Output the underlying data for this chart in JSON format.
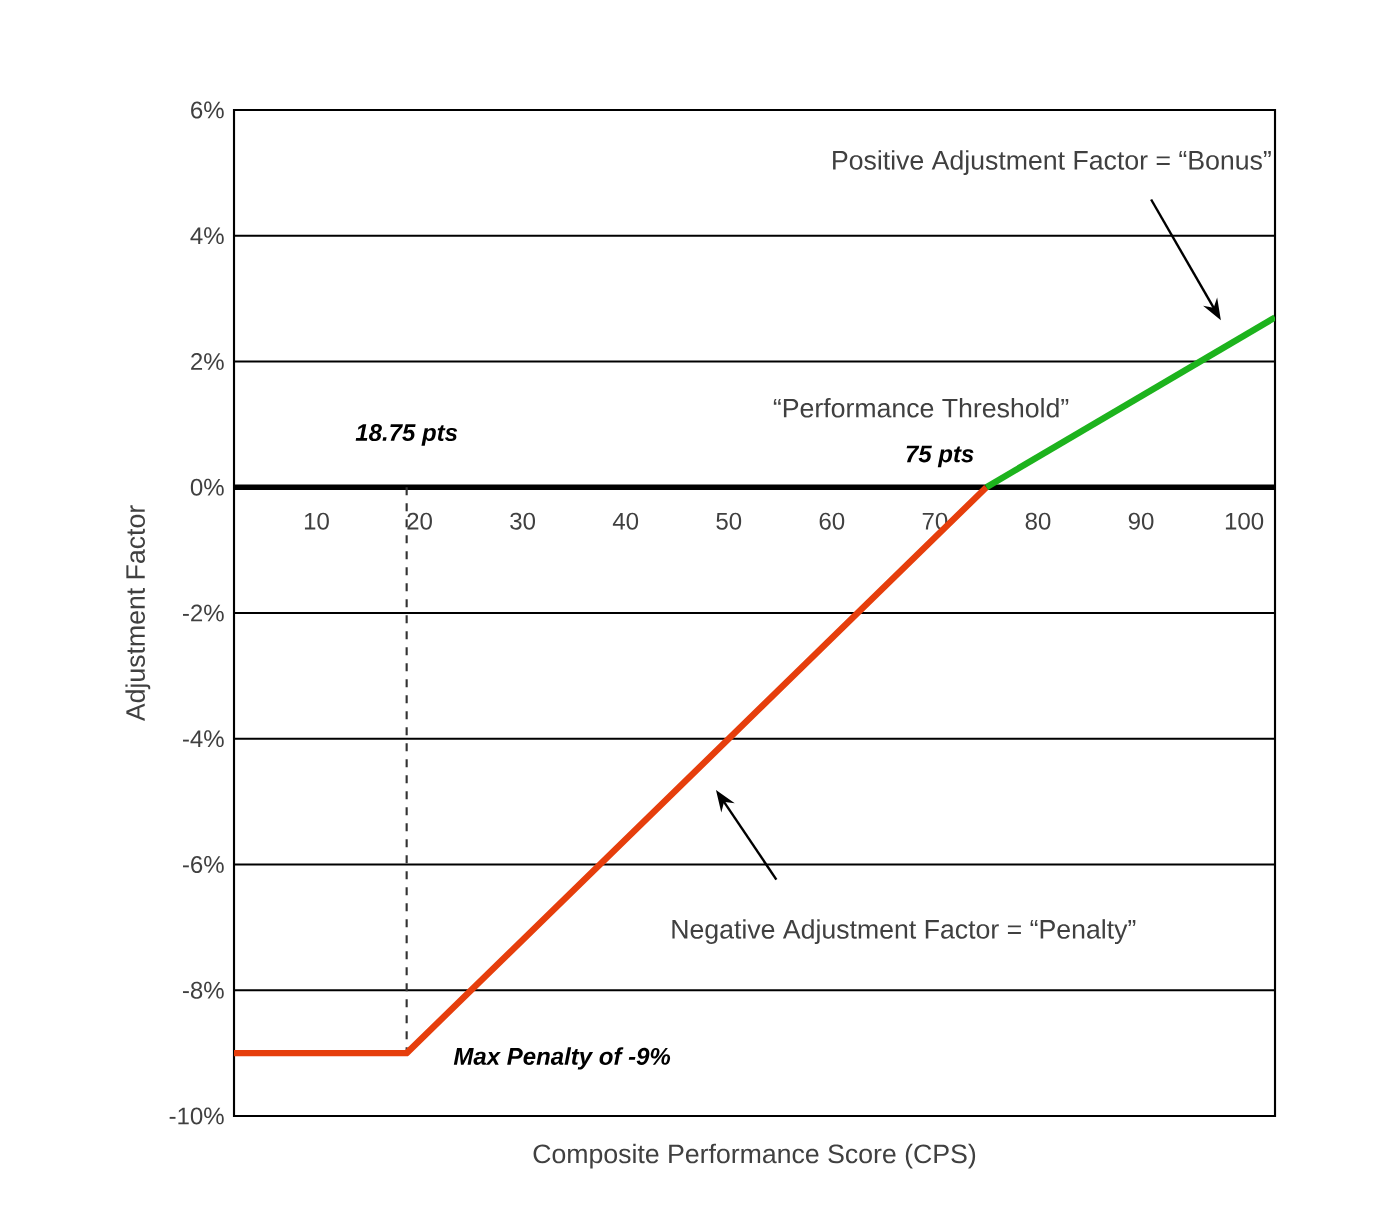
{
  "chart_data": {
    "type": "line",
    "xlabel": "Composite Performance Score (CPS)",
    "ylabel": "Adjustment Factor",
    "xlim": [
      2,
      103
    ],
    "ylim": [
      -10,
      6
    ],
    "xticks": [
      10,
      20,
      30,
      40,
      50,
      60,
      70,
      80,
      90,
      100
    ],
    "yticks": [
      {
        "value": -10,
        "label": "-10%"
      },
      {
        "value": -8,
        "label": "-8%"
      },
      {
        "value": -6,
        "label": "-6%"
      },
      {
        "value": -4,
        "label": "-4%"
      },
      {
        "value": -2,
        "label": "-2%"
      },
      {
        "value": 0,
        "label": "0%"
      },
      {
        "value": 2,
        "label": "2%"
      },
      {
        "value": 4,
        "label": "4%"
      },
      {
        "value": 6,
        "label": "6%"
      }
    ],
    "grid": "y",
    "marker": "none",
    "line_style": "solid",
    "series": [
      {
        "color": "#e63e0c",
        "x": [
          2,
          18.75,
          75
        ],
        "values": [
          -9,
          -9,
          0
        ]
      },
      {
        "color": "#1db31d",
        "x": [
          75,
          103
        ],
        "values": [
          0,
          2.7
        ]
      }
    ],
    "ref_lines": [
      {
        "axis": "x",
        "value": 18.75,
        "label": "18.75 pts",
        "line_style": "dashed"
      }
    ],
    "annotations": [
      "“Performance Threshold”",
      {
        "text": "75 pts",
        "x": 75,
        "y": 0
      },
      {
        "text": "Max Penalty of -9%",
        "x": 18.75,
        "y": -9
      },
      "Positive Adjustment Factor = “Bonus”",
      "Negative Adjustment Factor = “Penalty”"
    ]
  }
}
